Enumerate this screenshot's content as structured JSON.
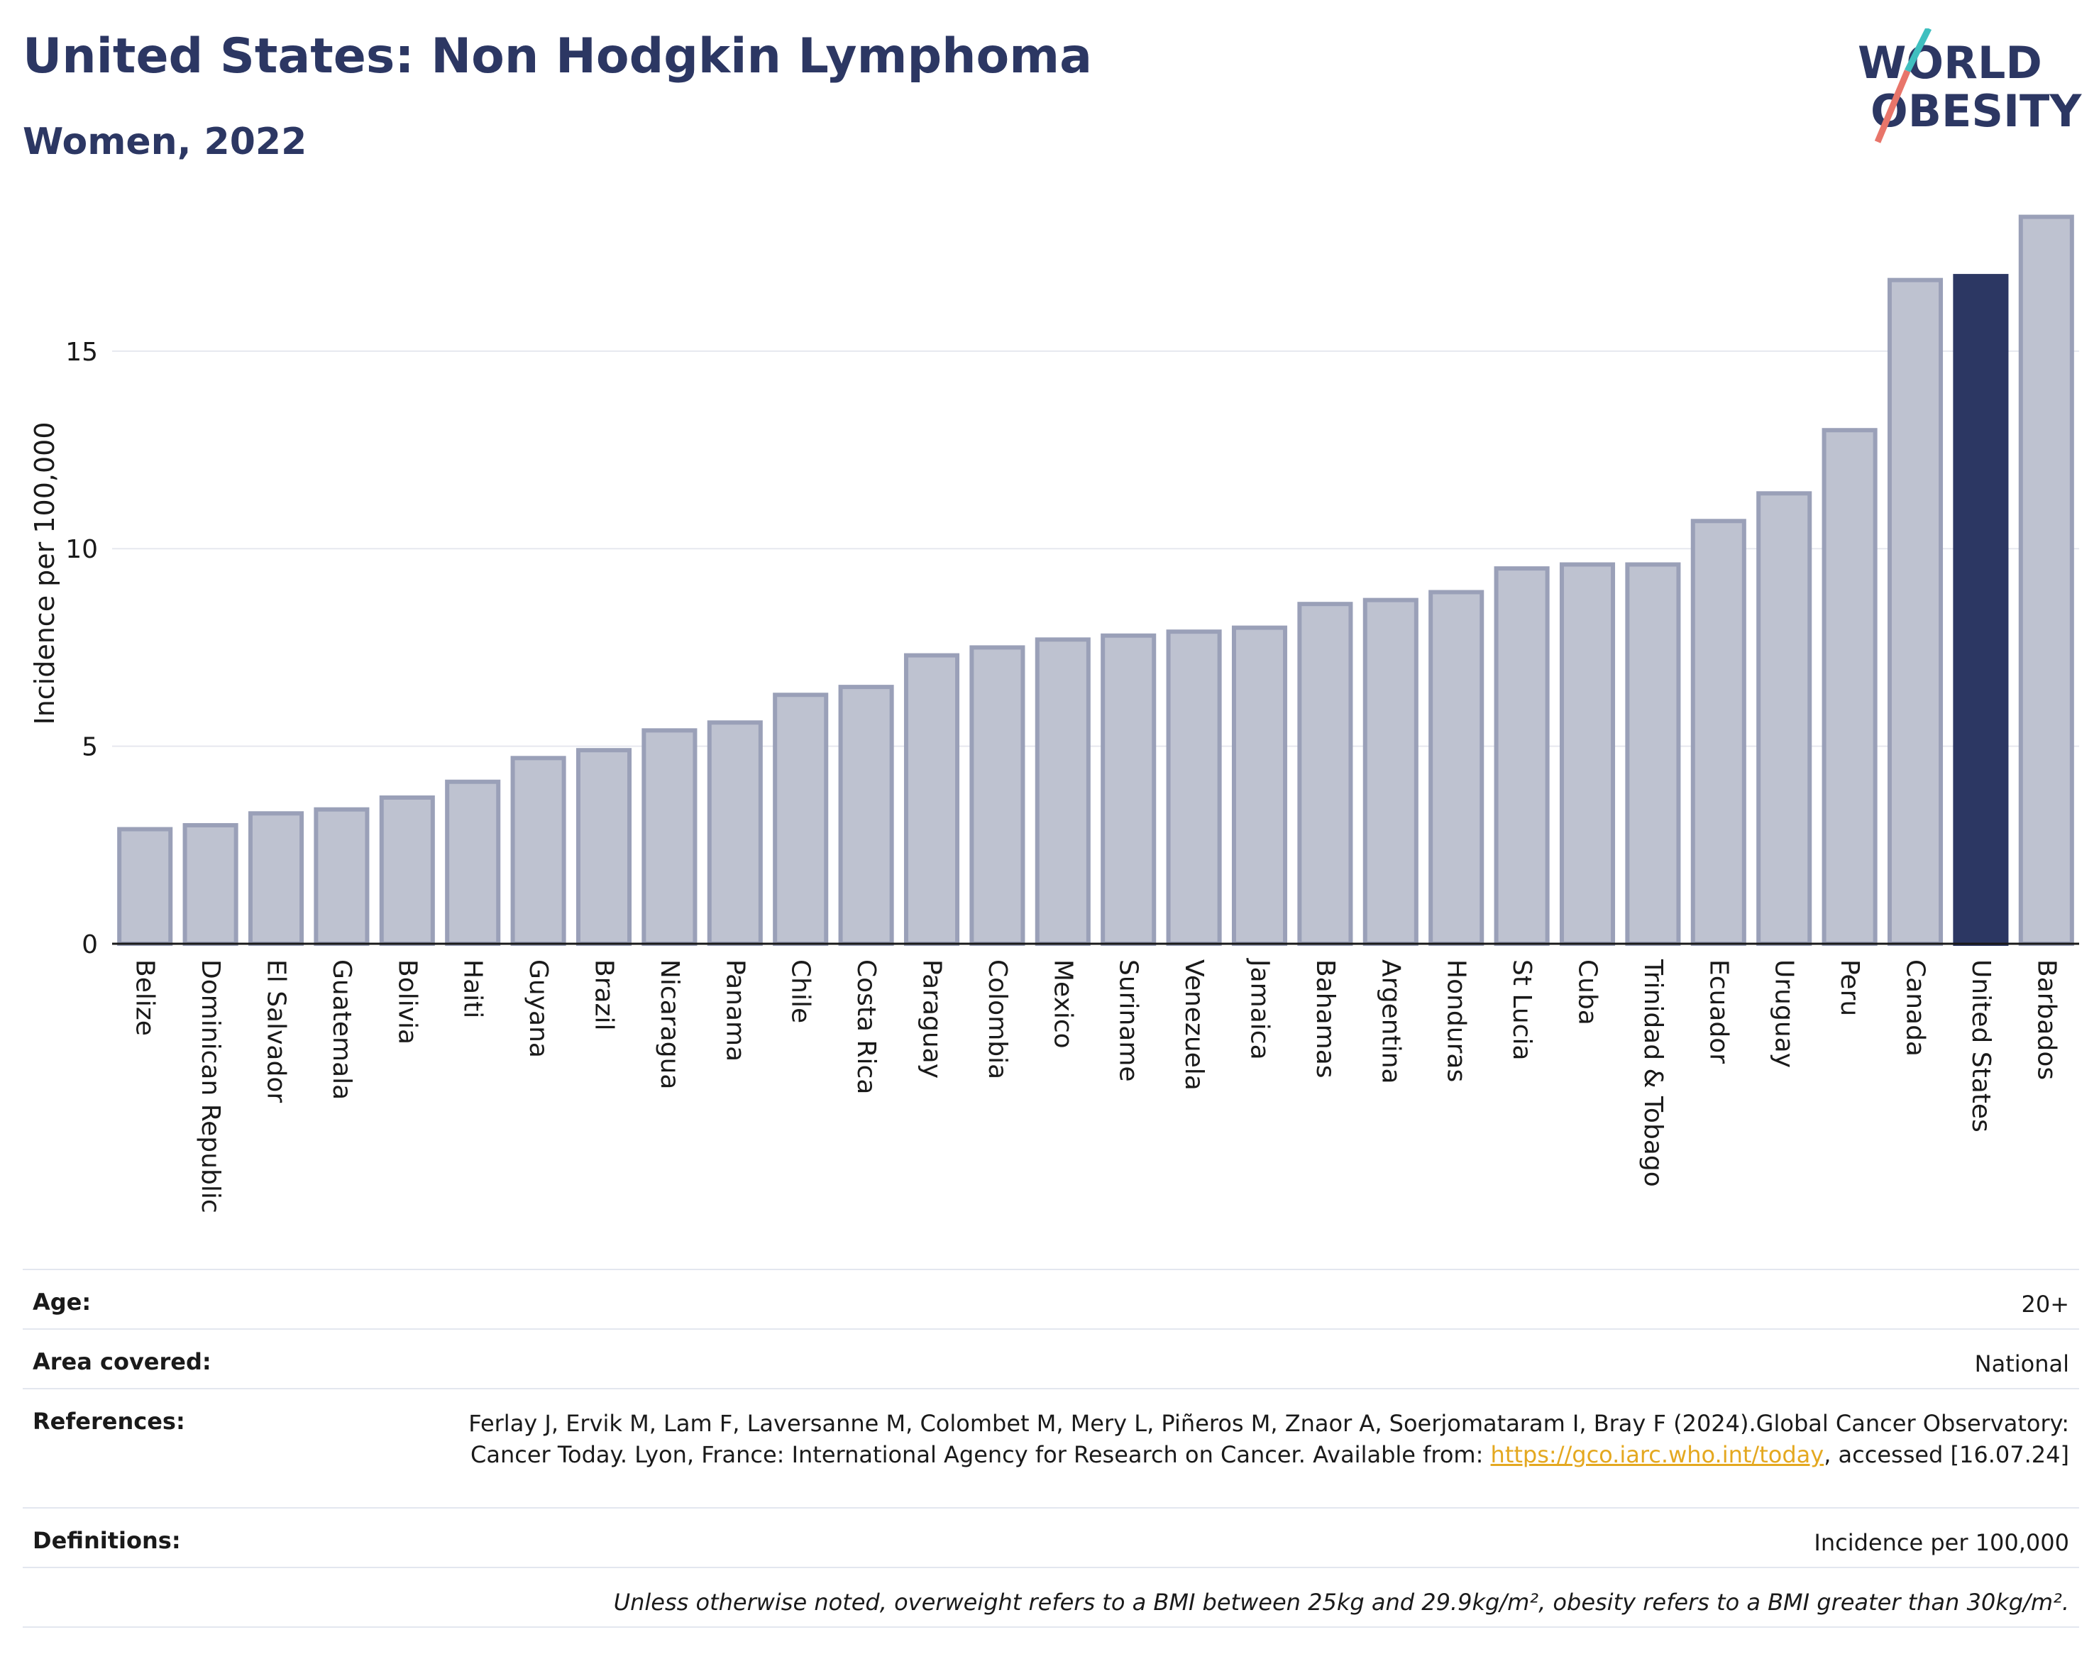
{
  "header": {
    "title": "United States: Non Hodgkin Lymphoma",
    "subtitle": "Women, 2022"
  },
  "logo": {
    "line1": "WORLD",
    "line2": "OBESITY"
  },
  "colors": {
    "highlight": "#2c3763",
    "bar_fill": "#bec2d0",
    "bar_stroke": "#9aa0b8",
    "grid": "#e6e8ef",
    "accent_teal": "#3fbfbf",
    "accent_coral": "#e8756a",
    "link": "#e4a820"
  },
  "chart_data": {
    "type": "bar",
    "title": "United States: Non Hodgkin Lymphoma",
    "subtitle": "Women, 2022",
    "xlabel": "",
    "ylabel": "Incidence per 100,000",
    "ylim": [
      0,
      18.5
    ],
    "yticks": [
      0,
      5,
      10,
      15
    ],
    "grid": true,
    "highlight": "United States",
    "categories": [
      "Belize",
      "Dominican Republic",
      "El Salvador",
      "Guatemala",
      "Bolivia",
      "Haiti",
      "Guyana",
      "Brazil",
      "Nicaragua",
      "Panama",
      "Chile",
      "Costa Rica",
      "Paraguay",
      "Colombia",
      "Mexico",
      "Suriname",
      "Venezuela",
      "Jamaica",
      "Bahamas",
      "Argentina",
      "Honduras",
      "St Lucia",
      "Cuba",
      "Trinidad & Tobago",
      "Ecuador",
      "Uruguay",
      "Peru",
      "Canada",
      "United States",
      "Barbados"
    ],
    "values": [
      2.9,
      3.0,
      3.3,
      3.4,
      3.7,
      4.1,
      4.7,
      4.9,
      5.4,
      5.6,
      6.3,
      6.5,
      7.3,
      7.5,
      7.7,
      7.8,
      7.9,
      8.0,
      8.6,
      8.7,
      8.9,
      9.5,
      9.6,
      9.6,
      10.7,
      11.4,
      13.0,
      16.8,
      16.9,
      18.4
    ]
  },
  "info": {
    "age_label": "Age:",
    "age_value": "20+",
    "area_label": "Area covered:",
    "area_value": "National",
    "references_label": "References:",
    "references_text_1": "Ferlay J, Ervik M, Lam F, Laversanne M, Colombet M, Mery L, Piñeros M, Znaor A, Soerjomataram I, Bray F (2024).Global Cancer Observatory: Cancer Today. Lyon, France: International Agency for Research on Cancer. Available from: ",
    "references_link": "https://gco.iarc.who.int/today",
    "references_text_2": ", accessed [16.07.24]",
    "definitions_label": "Definitions:",
    "definitions_value": "Incidence per 100,000",
    "note": "Unless otherwise noted, overweight refers to a BMI between 25kg and 29.9kg/m², obesity refers to a BMI greater than 30kg/m²."
  }
}
